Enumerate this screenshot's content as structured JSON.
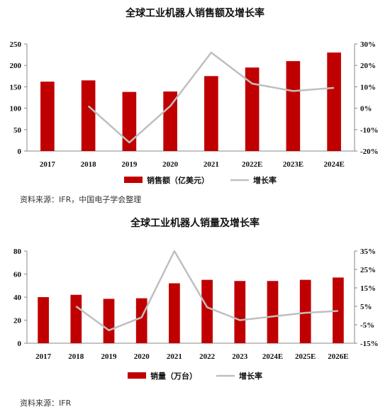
{
  "charts": [
    {
      "title": "全球工业机器人销售额及增长率",
      "source": "资料来源：IFR，中国电子学会整理",
      "chart_data": {
        "type": "bar+line",
        "categories": [
          "2017",
          "2018",
          "2019",
          "2020",
          "2021",
          "2022E",
          "2023E",
          "2024E"
        ],
        "series": [
          {
            "name": "销售额（亿美元）",
            "type": "bar",
            "axis": "left",
            "color": "#c00000",
            "values": [
              162,
              165,
              138,
              139,
              175,
              195,
              210,
              230
            ]
          },
          {
            "name": "增长率",
            "type": "line",
            "axis": "right",
            "color": "#bfbfbf",
            "values": [
              null,
              0.01,
              -0.16,
              0.01,
              0.26,
              0.115,
              0.08,
              0.095
            ]
          }
        ],
        "ylim_left": [
          0,
          250
        ],
        "yticks_left": [
          "0",
          "50",
          "100",
          "150",
          "200",
          "250"
        ],
        "ylim_right": [
          -0.2,
          0.3
        ],
        "yticks_right": [
          "-20%",
          "-10%",
          "0%",
          "10%",
          "20%",
          "30%"
        ],
        "grid": false,
        "legend_position": "bottom"
      }
    },
    {
      "title": "全球工业机器人销量及增长率",
      "source": "资料来源：IFR",
      "chart_data": {
        "type": "bar+line",
        "categories": [
          "2017",
          "2018",
          "2019",
          "2020",
          "2021",
          "2022",
          "2023",
          "2024E",
          "2025E",
          "2026E"
        ],
        "series": [
          {
            "name": "销量（万台）",
            "type": "bar",
            "axis": "left",
            "color": "#c00000",
            "values": [
              40,
              42,
              38.5,
              39,
              52,
              55,
              54,
              54,
              55,
              57
            ]
          },
          {
            "name": "增长率",
            "type": "line",
            "axis": "right",
            "color": "#bfbfbf",
            "values": [
              null,
              0.05,
              -0.08,
              -0.01,
              0.35,
              0.045,
              -0.025,
              -0.005,
              0.015,
              0.025
            ]
          }
        ],
        "ylim_left": [
          0,
          80
        ],
        "yticks_left": [
          "0",
          "20",
          "40",
          "60",
          "80"
        ],
        "ylim_right": [
          -0.15,
          0.35
        ],
        "yticks_right": [
          "-15%",
          "-5%",
          "5%",
          "15%",
          "25%",
          "35%"
        ],
        "grid": false,
        "legend_position": "bottom"
      }
    }
  ]
}
